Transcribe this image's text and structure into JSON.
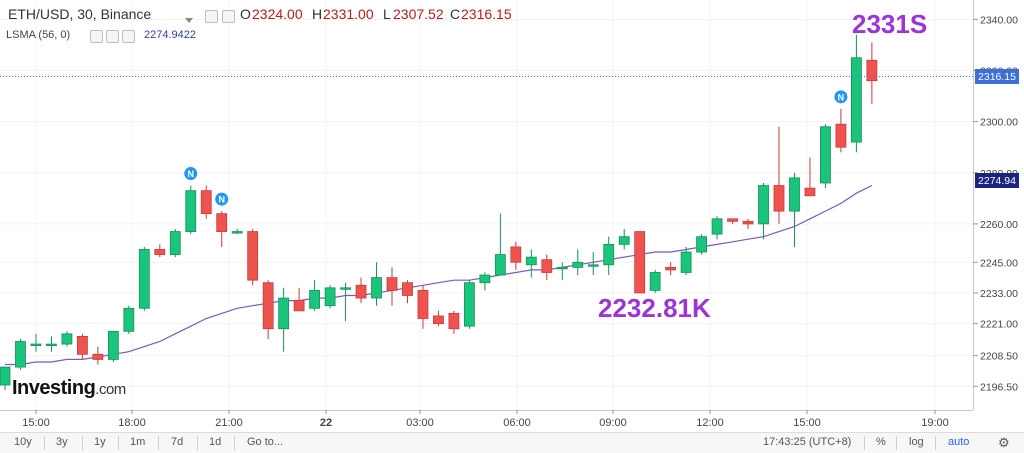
{
  "header": {
    "symbol": "ETH/USD, 30, Binance",
    "open_label": "O",
    "open": "2324.00",
    "high_label": "H",
    "high": "2331.00",
    "low_label": "L",
    "low": "2307.52",
    "close_label": "C",
    "close": "2316.15"
  },
  "indicator": {
    "name": "LSMA (56, 0)",
    "value": "2274.9422"
  },
  "logo": {
    "text": "Investing",
    "suffix": ".com"
  },
  "annotations": {
    "high": "2331S",
    "low": "2232.81K"
  },
  "bottom_bar": {
    "ranges": [
      "10y",
      "3y",
      "1y",
      "1m",
      "7d",
      "1d"
    ],
    "goto": "Go to...",
    "time": "17:43:25 (UTC+8)",
    "percent": "%",
    "log": "log",
    "auto": "auto"
  },
  "colors": {
    "up": "#26a69a",
    "up_fill": "#1bc47d",
    "down": "#ef5350",
    "ma": "#7e57c2",
    "price_tag": "#3d6fd8",
    "ma_tag": "#1a237e"
  },
  "chart_data": {
    "type": "candlestick",
    "ylim": [
      2188,
      2346
    ],
    "y_ticks": [
      2340.0,
      2320.0,
      2300.0,
      2280.0,
      2260.0,
      2245.0,
      2233.0,
      2221.0,
      2208.5,
      2196.5
    ],
    "y_tick_labels": [
      "2340.00",
      "2320.00",
      "2300.00",
      "2280.00",
      "2260.00",
      "2245.00",
      "2233.00",
      "2221.00",
      "2208.50",
      "2196.50"
    ],
    "x_ticks": [
      "15:00",
      "18:00",
      "21:00",
      "22",
      "03:00",
      "06:00",
      "09:00",
      "12:00",
      "15:00",
      "19:00"
    ],
    "last_price": "2316.15",
    "ma_price": "2274.94",
    "candles": [
      {
        "o": 2197,
        "h": 2204,
        "l": 2195,
        "c": 2204
      },
      {
        "o": 2204,
        "h": 2215,
        "l": 2203,
        "c": 2214
      },
      {
        "o": 2213,
        "h": 2217,
        "l": 2210,
        "c": 2213
      },
      {
        "o": 2213,
        "h": 2216,
        "l": 2210,
        "c": 2213
      },
      {
        "o": 2213,
        "h": 2218,
        "l": 2212,
        "c": 2217
      },
      {
        "o": 2216,
        "h": 2217,
        "l": 2207,
        "c": 2209
      },
      {
        "o": 2209,
        "h": 2212,
        "l": 2205,
        "c": 2207
      },
      {
        "o": 2207,
        "h": 2218,
        "l": 2206,
        "c": 2218
      },
      {
        "o": 2218,
        "h": 2228,
        "l": 2217,
        "c": 2227
      },
      {
        "o": 2227,
        "h": 2251,
        "l": 2226,
        "c": 2250
      },
      {
        "o": 2250,
        "h": 2252,
        "l": 2247,
        "c": 2248
      },
      {
        "o": 2248,
        "h": 2258,
        "l": 2247,
        "c": 2257
      },
      {
        "o": 2257,
        "h": 2275,
        "l": 2256,
        "c": 2273
      },
      {
        "o": 2273,
        "h": 2275,
        "l": 2262,
        "c": 2264
      },
      {
        "o": 2264,
        "h": 2265,
        "l": 2251,
        "c": 2257
      },
      {
        "o": 2257,
        "h": 2258,
        "l": 2256,
        "c": 2257
      },
      {
        "o": 2257,
        "h": 2258,
        "l": 2236,
        "c": 2238
      },
      {
        "o": 2237,
        "h": 2238,
        "l": 2215,
        "c": 2219
      },
      {
        "o": 2219,
        "h": 2235,
        "l": 2210,
        "c": 2231
      },
      {
        "o": 2230,
        "h": 2235,
        "l": 2226,
        "c": 2226
      },
      {
        "o": 2227,
        "h": 2238,
        "l": 2226,
        "c": 2234
      },
      {
        "o": 2228,
        "h": 2236,
        "l": 2227,
        "c": 2235
      },
      {
        "o": 2235,
        "h": 2237,
        "l": 2222,
        "c": 2235
      },
      {
        "o": 2236,
        "h": 2239,
        "l": 2229,
        "c": 2231
      },
      {
        "o": 2231,
        "h": 2245,
        "l": 2228,
        "c": 2239
      },
      {
        "o": 2239,
        "h": 2243,
        "l": 2228,
        "c": 2234
      },
      {
        "o": 2237,
        "h": 2238,
        "l": 2229,
        "c": 2232
      },
      {
        "o": 2234,
        "h": 2236,
        "l": 2219,
        "c": 2223
      },
      {
        "o": 2224,
        "h": 2226,
        "l": 2220,
        "c": 2221
      },
      {
        "o": 2225,
        "h": 2226,
        "l": 2217,
        "c": 2219
      },
      {
        "o": 2220,
        "h": 2238,
        "l": 2219,
        "c": 2237
      },
      {
        "o": 2237,
        "h": 2241,
        "l": 2234,
        "c": 2240
      },
      {
        "o": 2240,
        "h": 2264,
        "l": 2240,
        "c": 2248
      },
      {
        "o": 2251,
        "h": 2253,
        "l": 2242,
        "c": 2245
      },
      {
        "o": 2244,
        "h": 2250,
        "l": 2239,
        "c": 2247
      },
      {
        "o": 2246,
        "h": 2248,
        "l": 2238,
        "c": 2241
      },
      {
        "o": 2243,
        "h": 2245,
        "l": 2238,
        "c": 2243
      },
      {
        "o": 2243,
        "h": 2250,
        "l": 2240,
        "c": 2245
      },
      {
        "o": 2244,
        "h": 2249,
        "l": 2240,
        "c": 2244
      },
      {
        "o": 2244,
        "h": 2255,
        "l": 2240,
        "c": 2252
      },
      {
        "o": 2252,
        "h": 2258,
        "l": 2250,
        "c": 2255
      },
      {
        "o": 2257,
        "h": 2257,
        "l": 2233,
        "c": 2233
      },
      {
        "o": 2234,
        "h": 2242,
        "l": 2233,
        "c": 2241
      },
      {
        "o": 2243,
        "h": 2245,
        "l": 2240,
        "c": 2242
      },
      {
        "o": 2241,
        "h": 2251,
        "l": 2240,
        "c": 2249
      },
      {
        "o": 2249,
        "h": 2256,
        "l": 2248,
        "c": 2255
      },
      {
        "o": 2256,
        "h": 2263,
        "l": 2254,
        "c": 2262
      },
      {
        "o": 2262,
        "h": 2262,
        "l": 2260,
        "c": 2261
      },
      {
        "o": 2261,
        "h": 2262,
        "l": 2258,
        "c": 2260
      },
      {
        "o": 2260,
        "h": 2276,
        "l": 2254,
        "c": 2275
      },
      {
        "o": 2275,
        "h": 2298,
        "l": 2260,
        "c": 2265
      },
      {
        "o": 2265,
        "h": 2280,
        "l": 2251,
        "c": 2278
      },
      {
        "o": 2274,
        "h": 2286,
        "l": 2272,
        "c": 2271
      },
      {
        "o": 2276,
        "h": 2299,
        "l": 2274,
        "c": 2298
      },
      {
        "o": 2299,
        "h": 2305,
        "l": 2288,
        "c": 2290
      },
      {
        "o": 2292,
        "h": 2334,
        "l": 2288,
        "c": 2325
      },
      {
        "o": 2324,
        "h": 2331,
        "l": 2307,
        "c": 2316
      }
    ],
    "ma_values": [
      2205,
      2205,
      2206,
      2206,
      2207,
      2207,
      2208,
      2209,
      2210,
      2212,
      2214,
      2217,
      2220,
      2223,
      2225,
      2227,
      2228,
      2229,
      2230,
      2230,
      2231,
      2231,
      2232,
      2232,
      2233,
      2234,
      2235,
      2236,
      2237,
      2238,
      2238,
      2239,
      2240,
      2241,
      2242,
      2242,
      2243,
      2244,
      2245,
      2246,
      2247,
      2248,
      2249,
      2249,
      2250,
      2251,
      2252,
      2253,
      2254,
      2255,
      2257,
      2259,
      2262,
      2265,
      2268,
      2272,
      2275
    ]
  }
}
